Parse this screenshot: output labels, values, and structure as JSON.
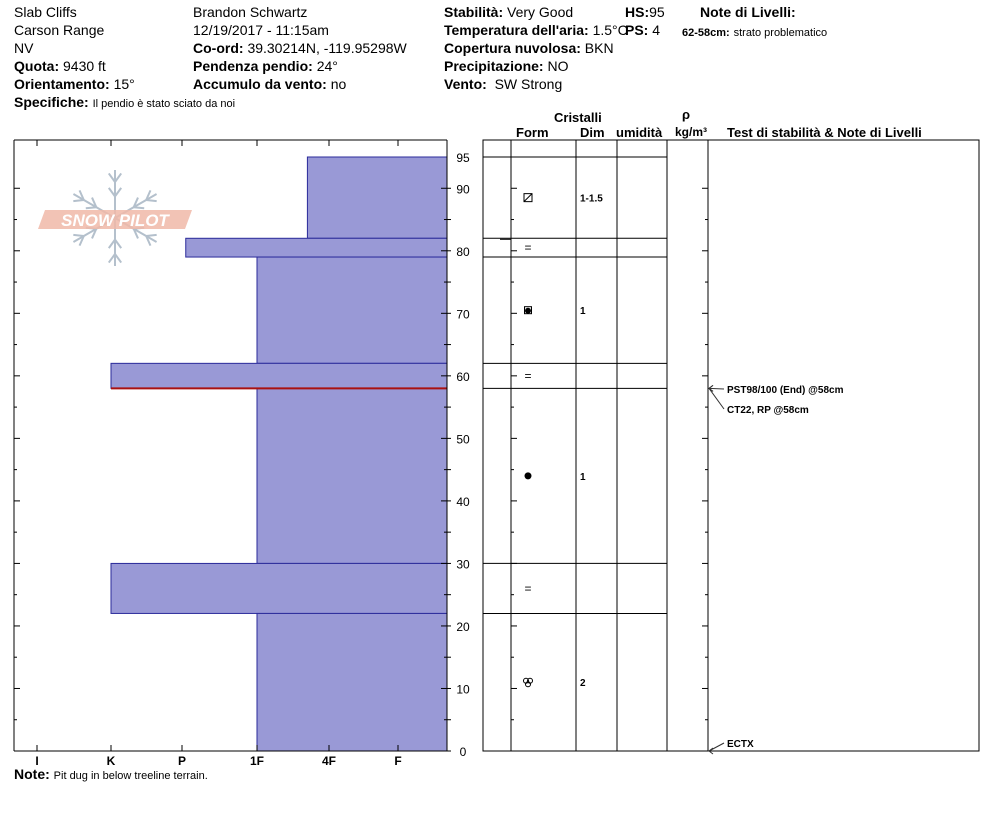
{
  "header": {
    "location": "Slab Cliffs",
    "range": "Carson Range",
    "state": "NV",
    "elevation_label": "Quota:",
    "elevation_value": "9430 ft",
    "aspect_label": "Orientamento:",
    "aspect_value": "15°",
    "specifics_label": "Specifiche:",
    "specifics_value": "Il pendio è stato sciato da noi",
    "observer": "Brandon Schwartz",
    "datetime": "12/19/2017 - 11:15am",
    "coord_label": "Co-ord:",
    "coord_value": "39.30214N, -119.95298W",
    "slope_label": "Pendenza pendio:",
    "slope_value": "24°",
    "wind_loading_label": "Accumulo da vento:",
    "wind_loading_value": "no",
    "stability_label": "Stabilità:",
    "stability_value": "Very Good",
    "air_temp_label": "Temperatura dell'aria:",
    "air_temp_value": "1.5°C",
    "cloud_label": "Copertura nuvolosa:",
    "cloud_value": "BKN",
    "precip_label": "Precipitazione:",
    "precip_value": "NO",
    "wind_label": "Vento:",
    "wind_value": "SW Strong",
    "hs_label": "HS:",
    "hs_value": "95",
    "ps_label": "PS:",
    "ps_value": "4",
    "layer_notes_label": "Note di Livelli:",
    "layer_note_range": "62-58cm:",
    "layer_note_text": "strato problematico"
  },
  "logo": {
    "text": "SNOW PILOT"
  },
  "columns": {
    "cristalli": "Cristalli",
    "form": "Form",
    "dim": "Dim",
    "umidita": "umidità",
    "rho": "ρ",
    "density_unit": "kg/m³",
    "stability_notes": "Test di stabilità & Note di Livelli"
  },
  "footer": {
    "note_label": "Note:",
    "note_value": "Pit dug in below treeline terrain."
  },
  "colors": {
    "hardness_fill": "#9999d6",
    "hardness_stroke": "#2a2a9a",
    "weak_layer": "#aa1111",
    "logo": "#f0b8a8",
    "snowflake": "#b4c0cc"
  },
  "chart_data": {
    "type": "snow-profile",
    "y_axis": {
      "range": [
        0,
        95
      ],
      "ticks": [
        0,
        10,
        20,
        30,
        40,
        50,
        60,
        70,
        80,
        90,
        95
      ]
    },
    "hardness_scale": [
      "I",
      "K",
      "P",
      "1F",
      "4F",
      "F"
    ],
    "layers": [
      {
        "top": 95,
        "bottom": 82,
        "hardness": "4F-",
        "hardness_index": 3.7,
        "form": "grain-facet",
        "size": "1-1.5"
      },
      {
        "top": 82,
        "bottom": 79,
        "hardness": "P+",
        "hardness_index": 2.05,
        "form": "=",
        "size": ""
      },
      {
        "top": 79,
        "bottom": 62,
        "hardness": "1F",
        "hardness_index": 3,
        "form": "rounding-facet",
        "size": "1"
      },
      {
        "top": 62,
        "bottom": 58,
        "hardness": "K",
        "hardness_index": 1,
        "form": "=",
        "size": ""
      },
      {
        "top": 58,
        "bottom": 30,
        "hardness": "1F",
        "hardness_index": 3,
        "form": "rounded",
        "size": "1"
      },
      {
        "top": 30,
        "bottom": 22,
        "hardness": "K",
        "hardness_index": 1,
        "form": "=",
        "size": ""
      },
      {
        "top": 22,
        "bottom": 0,
        "hardness": "1F",
        "hardness_index": 3,
        "form": "melt-form",
        "size": "2"
      }
    ],
    "weak_layer_depth": 58,
    "stability_tests": [
      {
        "depth": 58,
        "label": "PST98/100 (End) @58cm"
      },
      {
        "depth": 58,
        "label": "CT22, RP @58cm"
      },
      {
        "depth": 0,
        "label": "ECTX"
      }
    ]
  }
}
